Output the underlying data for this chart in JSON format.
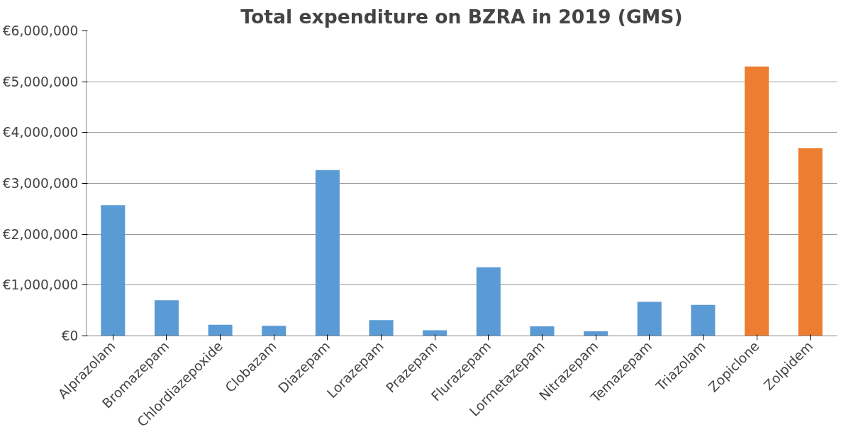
{
  "chart_data": {
    "type": "bar",
    "title": "Total expenditure on BZRA in 2019 (GMS)",
    "categories": [
      "Alprazolam",
      "Bromazepam",
      "Chlordiazepoxide",
      "Clobazam",
      "Diazepam",
      "Lorazepam",
      "Prazepam",
      "Flurazepam",
      "Lormetazepam",
      "Nitrazepam",
      "Temazepam",
      "Triazolam",
      "Zopiclone",
      "Zolpidem"
    ],
    "values": [
      2570000,
      700000,
      220000,
      200000,
      3260000,
      310000,
      110000,
      1350000,
      190000,
      90000,
      670000,
      610000,
      5300000,
      3690000
    ],
    "colors": [
      "#5b9bd5",
      "#5b9bd5",
      "#5b9bd5",
      "#5b9bd5",
      "#5b9bd5",
      "#5b9bd5",
      "#5b9bd5",
      "#5b9bd5",
      "#5b9bd5",
      "#5b9bd5",
      "#5b9bd5",
      "#5b9bd5",
      "#ed7d31",
      "#ed7d31"
    ],
    "ylim": [
      0,
      6000000
    ],
    "yticks": [
      {
        "value": 0,
        "label": "€0"
      },
      {
        "value": 1000000,
        "label": "€1,000,000"
      },
      {
        "value": 2000000,
        "label": "€2,000,000"
      },
      {
        "value": 3000000,
        "label": "€3,000,000"
      },
      {
        "value": 4000000,
        "label": "€4,000,000"
      },
      {
        "value": 5000000,
        "label": "€5,000,000"
      },
      {
        "value": 6000000,
        "label": "€6,000,000"
      }
    ],
    "grid": "y"
  }
}
